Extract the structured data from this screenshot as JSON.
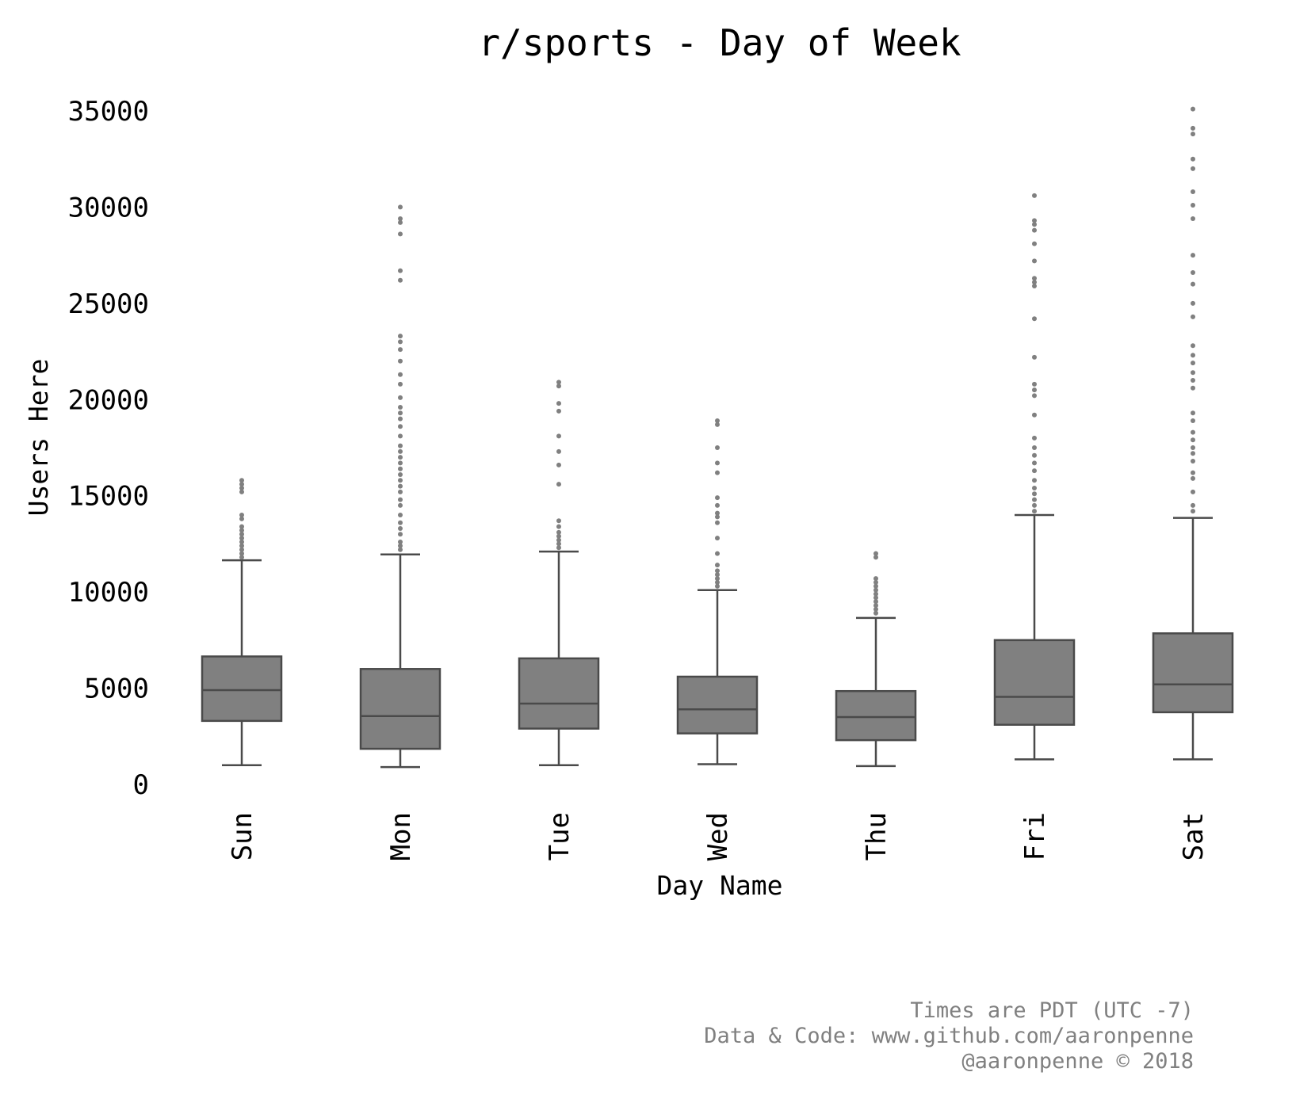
{
  "chart_data": {
    "type": "box",
    "title": "r/sports - Day of Week",
    "xlabel": "Day Name",
    "ylabel": "Users Here",
    "ylim": [
      0,
      35000
    ],
    "yticks": [
      0,
      5000,
      10000,
      15000,
      20000,
      25000,
      30000,
      35000
    ],
    "categories": [
      "Sun",
      "Mon",
      "Tue",
      "Wed",
      "Thu",
      "Fri",
      "Sat"
    ],
    "box_color": "#808080",
    "line_color": "#4a4a4a",
    "grid": false,
    "boxes": [
      {
        "category": "Sun",
        "whisker_low": 1000,
        "q1": 3300,
        "median": 4900,
        "q3": 6650,
        "whisker_high": 11650,
        "outliers": [
          11800,
          12000,
          12200,
          12400,
          12600,
          12800,
          13000,
          13200,
          13400,
          13800,
          14000,
          15200,
          15400,
          15600,
          15800
        ]
      },
      {
        "category": "Mon",
        "whisker_low": 900,
        "q1": 1850,
        "median": 3550,
        "q3": 6000,
        "whisker_high": 11950,
        "outliers": [
          12200,
          12400,
          12600,
          13000,
          13300,
          13600,
          14000,
          14500,
          14800,
          15200,
          15500,
          15800,
          16100,
          16400,
          16700,
          17000,
          17300,
          17600,
          18100,
          18600,
          19000,
          19300,
          19600,
          20100,
          20800,
          21300,
          22000,
          22600,
          23000,
          23300,
          26200,
          26700,
          28600,
          29200,
          29400,
          30000
        ]
      },
      {
        "category": "Tue",
        "whisker_low": 1000,
        "q1": 2900,
        "median": 4200,
        "q3": 6550,
        "whisker_high": 12100,
        "outliers": [
          12300,
          12500,
          12700,
          12900,
          13100,
          13400,
          13700,
          15600,
          16600,
          17300,
          18100,
          19400,
          19800,
          20700,
          20900
        ]
      },
      {
        "category": "Wed",
        "whisker_low": 1050,
        "q1": 2650,
        "median": 3900,
        "q3": 5600,
        "whisker_high": 10100,
        "outliers": [
          10300,
          10500,
          10700,
          10900,
          11100,
          11400,
          12000,
          12800,
          13600,
          13900,
          14100,
          14500,
          14900,
          16200,
          16700,
          17500,
          18700,
          18900
        ]
      },
      {
        "category": "Thu",
        "whisker_low": 950,
        "q1": 2300,
        "median": 3500,
        "q3": 4850,
        "whisker_high": 8650,
        "outliers": [
          8900,
          9100,
          9300,
          9500,
          9700,
          9900,
          10100,
          10300,
          10500,
          10700,
          11800,
          12000
        ]
      },
      {
        "category": "Fri",
        "whisker_low": 1300,
        "q1": 3100,
        "median": 4550,
        "q3": 7500,
        "whisker_high": 14000,
        "outliers": [
          14200,
          14500,
          14800,
          15100,
          15400,
          15800,
          16300,
          16700,
          17100,
          17500,
          18000,
          19200,
          20200,
          20500,
          20800,
          22200,
          24200,
          25900,
          26100,
          26300,
          27200,
          28100,
          28800,
          29100,
          29300,
          30600
        ]
      },
      {
        "category": "Sat",
        "whisker_low": 1300,
        "q1": 3750,
        "median": 5200,
        "q3": 7850,
        "whisker_high": 13850,
        "outliers": [
          14200,
          14500,
          15200,
          15900,
          16200,
          16800,
          17200,
          17500,
          17900,
          18300,
          18900,
          19300,
          20600,
          21000,
          21400,
          21900,
          22300,
          22800,
          24300,
          25000,
          26000,
          26600,
          27500,
          29400,
          30100,
          30800,
          32000,
          32500,
          33800,
          34100,
          35100
        ]
      }
    ]
  },
  "credits": {
    "line1": "Times are PDT (UTC -7)",
    "line2": "Data & Code: www.github.com/aaronpenne",
    "line3": "@aaronpenne © 2018"
  }
}
